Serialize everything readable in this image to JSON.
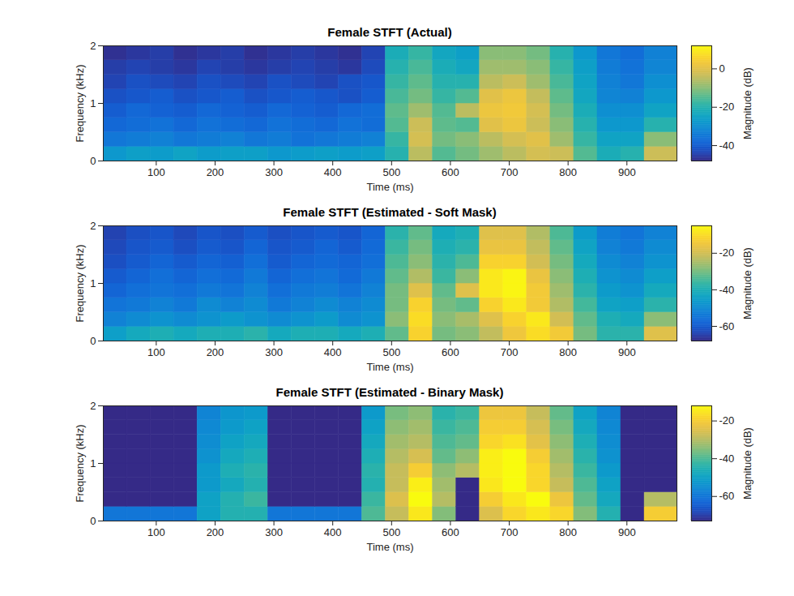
{
  "chart_data": [
    {
      "type": "heatmap",
      "title": "Female STFT (Actual)",
      "x_label": "Time (ms)",
      "y_label": "Frequency (kHz)",
      "xlim": [
        10,
        985
      ],
      "xticks": [
        100,
        200,
        300,
        400,
        500,
        600,
        700,
        800,
        900
      ],
      "ylim": [
        0,
        2
      ],
      "yticks": [
        0,
        1,
        2
      ],
      "x_edges": [
        10,
        50,
        90,
        130,
        170,
        210,
        250,
        290,
        330,
        370,
        410,
        450,
        490,
        530,
        570,
        610,
        650,
        690,
        730,
        770,
        810,
        850,
        890,
        930,
        985
      ],
      "y_edges": [
        0,
        0.25,
        0.5,
        0.75,
        1,
        1.25,
        1.5,
        1.75,
        2
      ],
      "cells": [
        [
          -28,
          -26,
          -27,
          -25,
          -27,
          -26,
          -26,
          -28,
          -27,
          -26,
          -27,
          -26,
          -20,
          -5,
          -15,
          -12,
          -8,
          -5,
          -2,
          -3,
          -15,
          -22,
          -20,
          -3
        ],
        [
          -35,
          -34,
          -33,
          -35,
          -34,
          -33,
          -35,
          -34,
          -36,
          -35,
          -34,
          -33,
          -18,
          -2,
          -12,
          -10,
          -5,
          -2,
          0,
          -8,
          -18,
          -25,
          -25,
          -10
        ],
        [
          -38,
          -37,
          -36,
          -38,
          -36,
          -37,
          -38,
          -36,
          -37,
          -38,
          -36,
          -37,
          -15,
          -3,
          -14,
          -15,
          0,
          2,
          -3,
          -10,
          -20,
          -28,
          -28,
          -20
        ],
        [
          -40,
          -38,
          -39,
          -40,
          -38,
          -39,
          -40,
          -38,
          -39,
          -40,
          -38,
          -37,
          -14,
          -8,
          -15,
          -5,
          2,
          3,
          -2,
          -12,
          -22,
          -30,
          -30,
          -25
        ],
        [
          -42,
          -41,
          -40,
          -42,
          -41,
          -40,
          -42,
          -41,
          -40,
          -41,
          -42,
          -40,
          -16,
          -12,
          -18,
          -15,
          0,
          2,
          -4,
          -14,
          -24,
          -32,
          -33,
          -28
        ],
        [
          -44,
          -42,
          -43,
          -44,
          -42,
          -43,
          -44,
          -42,
          -43,
          -44,
          -42,
          -41,
          -18,
          -14,
          -20,
          -20,
          -5,
          -3,
          -8,
          -16,
          -25,
          -33,
          -35,
          -30
        ],
        [
          -45,
          -44,
          -45,
          -46,
          -44,
          -45,
          -46,
          -45,
          -44,
          -45,
          -46,
          -43,
          -20,
          -16,
          -22,
          -24,
          -8,
          -8,
          -10,
          -18,
          -26,
          -34,
          -36,
          -32
        ],
        [
          -47,
          -46,
          -45,
          -47,
          -46,
          -45,
          -47,
          -46,
          -45,
          -46,
          -47,
          -44,
          -22,
          -18,
          -24,
          -26,
          -10,
          -10,
          -12,
          -20,
          -28,
          -35,
          -37,
          -33
        ]
      ],
      "colorbar": {
        "label": "Magnitude (dB)",
        "lim": [
          -48,
          12
        ],
        "ticks": [
          -40,
          -20,
          0
        ]
      }
    },
    {
      "type": "heatmap",
      "title": "Female STFT (Estimated - Soft Mask)",
      "x_label": "Time (ms)",
      "y_label": "Frequency (kHz)",
      "xlim": [
        10,
        985
      ],
      "xticks": [
        100,
        200,
        300,
        400,
        500,
        600,
        700,
        800,
        900
      ],
      "ylim": [
        0,
        2
      ],
      "yticks": [
        0,
        1,
        2
      ],
      "x_edges": [
        10,
        50,
        90,
        130,
        170,
        210,
        250,
        290,
        330,
        370,
        410,
        450,
        490,
        530,
        570,
        610,
        650,
        690,
        730,
        770,
        810,
        850,
        890,
        930,
        985
      ],
      "y_edges": [
        0,
        0.25,
        0.5,
        0.75,
        1,
        1.25,
        1.5,
        1.75,
        2
      ],
      "cells": [
        [
          -45,
          -42,
          -40,
          -42,
          -40,
          -40,
          -38,
          -42,
          -40,
          -40,
          -42,
          -40,
          -32,
          -12,
          -30,
          -28,
          -22,
          -15,
          -10,
          -14,
          -30,
          -38,
          -38,
          -18
        ],
        [
          -52,
          -50,
          -48,
          -50,
          -48,
          -46,
          -48,
          -50,
          -48,
          -46,
          -50,
          -48,
          -28,
          -10,
          -28,
          -25,
          -18,
          -12,
          -8,
          -20,
          -32,
          -40,
          -42,
          -28
        ],
        [
          -55,
          -54,
          -52,
          -54,
          -50,
          -52,
          -50,
          -54,
          -52,
          -50,
          -52,
          -50,
          -30,
          -12,
          -30,
          -32,
          -12,
          -8,
          -14,
          -24,
          -35,
          -44,
          -45,
          -38
        ],
        [
          -58,
          -56,
          -55,
          -56,
          -54,
          -55,
          -52,
          -56,
          -54,
          -53,
          -55,
          -52,
          -30,
          -18,
          -32,
          -18,
          -8,
          -6,
          -14,
          -26,
          -38,
          -46,
          -48,
          -42
        ],
        [
          -60,
          -58,
          -56,
          -58,
          -56,
          -57,
          -54,
          -58,
          -56,
          -55,
          -57,
          -54,
          -32,
          -24,
          -36,
          -28,
          -8,
          -6,
          -16,
          -28,
          -40,
          -48,
          -50,
          -45
        ],
        [
          -62,
          -60,
          -58,
          -60,
          -58,
          -59,
          -56,
          -60,
          -58,
          -57,
          -58,
          -56,
          -34,
          -28,
          -38,
          -34,
          -12,
          -12,
          -20,
          -30,
          -42,
          -50,
          -52,
          -48
        ],
        [
          -63,
          -61,
          -60,
          -62,
          -60,
          -61,
          -58,
          -61,
          -60,
          -58,
          -60,
          -57,
          -36,
          -30,
          -40,
          -38,
          -16,
          -16,
          -22,
          -32,
          -44,
          -52,
          -54,
          -50
        ],
        [
          -64,
          -62,
          -61,
          -63,
          -61,
          -62,
          -60,
          -62,
          -61,
          -60,
          -61,
          -58,
          -38,
          -32,
          -42,
          -40,
          -18,
          -18,
          -24,
          -34,
          -46,
          -53,
          -55,
          -52
        ]
      ],
      "colorbar": {
        "label": "Magnitude (dB)",
        "lim": [
          -68,
          -5
        ],
        "ticks": [
          -60,
          -40,
          -20
        ]
      }
    },
    {
      "type": "heatmap",
      "title": "Female STFT (Estimated - Binary Mask)",
      "x_label": "Time (ms)",
      "y_label": "Frequency (kHz)",
      "xlim": [
        10,
        985
      ],
      "xticks": [
        100,
        200,
        300,
        400,
        500,
        600,
        700,
        800,
        900
      ],
      "ylim": [
        0,
        2
      ],
      "yticks": [
        0,
        1,
        2
      ],
      "x_edges": [
        10,
        50,
        90,
        130,
        170,
        210,
        250,
        290,
        330,
        370,
        410,
        450,
        490,
        530,
        570,
        610,
        650,
        690,
        730,
        770,
        810,
        850,
        890,
        930,
        985
      ],
      "y_edges": [
        0,
        0.25,
        0.5,
        0.75,
        1,
        1.25,
        1.5,
        1.75,
        2
      ],
      "cells": [
        [
          -60,
          -60,
          -60,
          -60,
          -50,
          -45,
          -45,
          -60,
          -60,
          -60,
          -60,
          -40,
          -28,
          -15,
          -35,
          -73,
          -25,
          -18,
          -15,
          -18,
          -35,
          -45,
          -73,
          -20
        ],
        [
          -73,
          -73,
          -73,
          -73,
          -50,
          -45,
          -42,
          -73,
          -73,
          -73,
          -73,
          -42,
          -25,
          -12,
          -30,
          -73,
          -20,
          -15,
          -12,
          -22,
          -38,
          -48,
          -73,
          -30
        ],
        [
          -73,
          -73,
          -73,
          -73,
          -52,
          -48,
          -45,
          -73,
          -73,
          -73,
          -73,
          -45,
          -28,
          -14,
          -32,
          -73,
          -15,
          -12,
          -18,
          -28,
          -40,
          -50,
          -73,
          -73
        ],
        [
          -73,
          -73,
          -73,
          -73,
          -52,
          -46,
          -44,
          -73,
          -73,
          -73,
          -73,
          -44,
          -28,
          -20,
          -34,
          -30,
          -14,
          -12,
          -18,
          -30,
          -42,
          -52,
          -73,
          -73
        ],
        [
          -73,
          -73,
          -73,
          -73,
          -54,
          -48,
          -46,
          -73,
          -73,
          -73,
          -73,
          -46,
          -30,
          -26,
          -38,
          -34,
          -14,
          -12,
          -20,
          -32,
          -44,
          -54,
          -73,
          -73
        ],
        [
          -73,
          -73,
          -73,
          -73,
          -55,
          -50,
          -48,
          -73,
          -73,
          -73,
          -73,
          -48,
          -32,
          -30,
          -40,
          -38,
          -18,
          -16,
          -24,
          -34,
          -46,
          -55,
          -73,
          -73
        ],
        [
          -73,
          -73,
          -73,
          -73,
          -56,
          -52,
          -50,
          -73,
          -73,
          -73,
          -73,
          -50,
          -34,
          -32,
          -42,
          -40,
          -20,
          -20,
          -26,
          -36,
          -48,
          -56,
          -73,
          -73
        ],
        [
          -73,
          -73,
          -73,
          -73,
          -57,
          -53,
          -52,
          -73,
          -73,
          -73,
          -73,
          -52,
          -36,
          -34,
          -44,
          -42,
          -22,
          -22,
          -28,
          -38,
          -50,
          -57,
          -73,
          -73
        ]
      ],
      "colorbar": {
        "label": "Magnitude (dB)",
        "lim": [
          -73,
          -12
        ],
        "ticks": [
          -60,
          -40,
          -20
        ]
      }
    }
  ]
}
